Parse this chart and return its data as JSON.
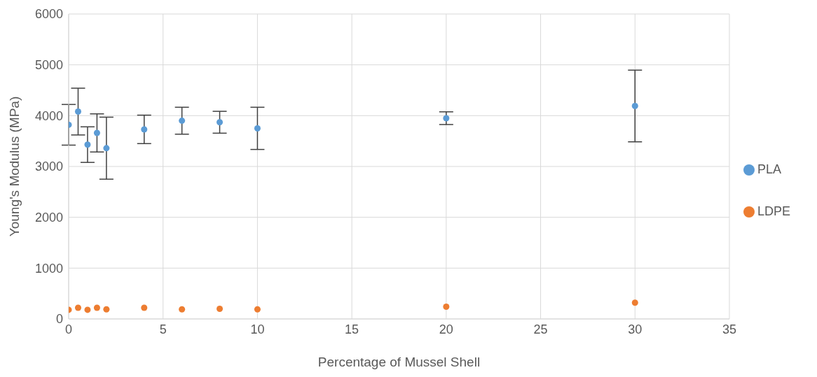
{
  "chart_data": {
    "type": "scatter",
    "xlabel": "Percentage of Mussel Shell",
    "ylabel": "Young's Modulus (MPa)",
    "x": [
      0,
      0.5,
      1,
      1.5,
      2,
      4,
      6,
      8,
      10,
      20,
      30
    ],
    "series": [
      {
        "name": "PLA",
        "color": "#5b9bd5",
        "values": [
          3820,
          4080,
          3430,
          3660,
          3360,
          3730,
          3900,
          3870,
          3750,
          3950,
          4190
        ],
        "errors": [
          400,
          460,
          350,
          375,
          610,
          280,
          265,
          215,
          415,
          125,
          705
        ]
      },
      {
        "name": "LDPE",
        "color": "#ed7d31",
        "values": [
          180,
          220,
          180,
          220,
          190,
          220,
          190,
          200,
          190,
          240,
          320
        ]
      }
    ],
    "xlim": [
      0,
      35
    ],
    "xticks": [
      0,
      5,
      10,
      15,
      20,
      25,
      30,
      35
    ],
    "ylim": [
      0,
      6000
    ],
    "yticks": [
      0,
      1000,
      2000,
      3000,
      4000,
      5000,
      6000
    ],
    "grid": true,
    "legend": "right",
    "marker": "circle"
  }
}
